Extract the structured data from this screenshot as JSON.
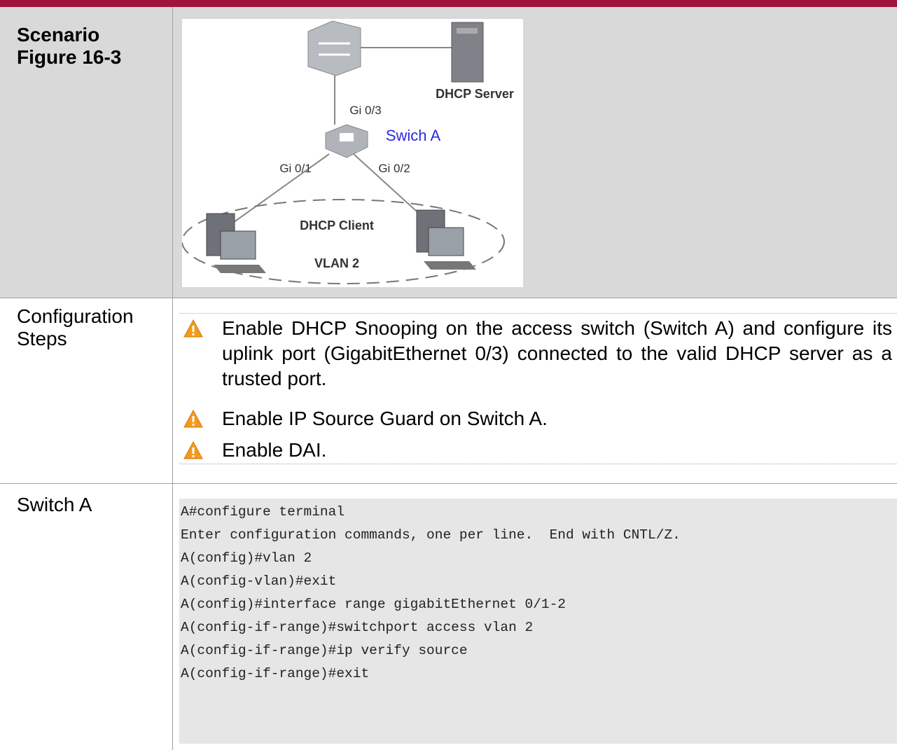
{
  "scenario": {
    "label": "Scenario",
    "figure": "Figure 16-3",
    "diagram": {
      "server": "DHCP Server",
      "uplink_port": "Gi 0/3",
      "switch": "Swich A",
      "port_1": "Gi 0/1",
      "port_2": "Gi 0/2",
      "client": "DHCP Client",
      "vlan": "VLAN 2"
    }
  },
  "configuration_steps": {
    "label": "Configuration Steps",
    "items": [
      "Enable DHCP Snooping on the access switch (Switch A) and configure its uplink port (GigabitEthernet 0/3) connected to the valid DHCP server as a trusted port.",
      "Enable IP Source Guard on Switch A.",
      "Enable DAI."
    ]
  },
  "switch_a": {
    "label": "Switch A",
    "code": [
      "A#configure terminal",
      "Enter configuration commands, one per line.  End with CNTL/Z.",
      "A(config)#vlan 2",
      "A(config-vlan)#exit",
      "A(config)#interface range gigabitEthernet 0/1-2",
      "A(config-if-range)#switchport access vlan 2",
      "A(config-if-range)#ip verify source",
      "A(config-if-range)#exit"
    ]
  }
}
